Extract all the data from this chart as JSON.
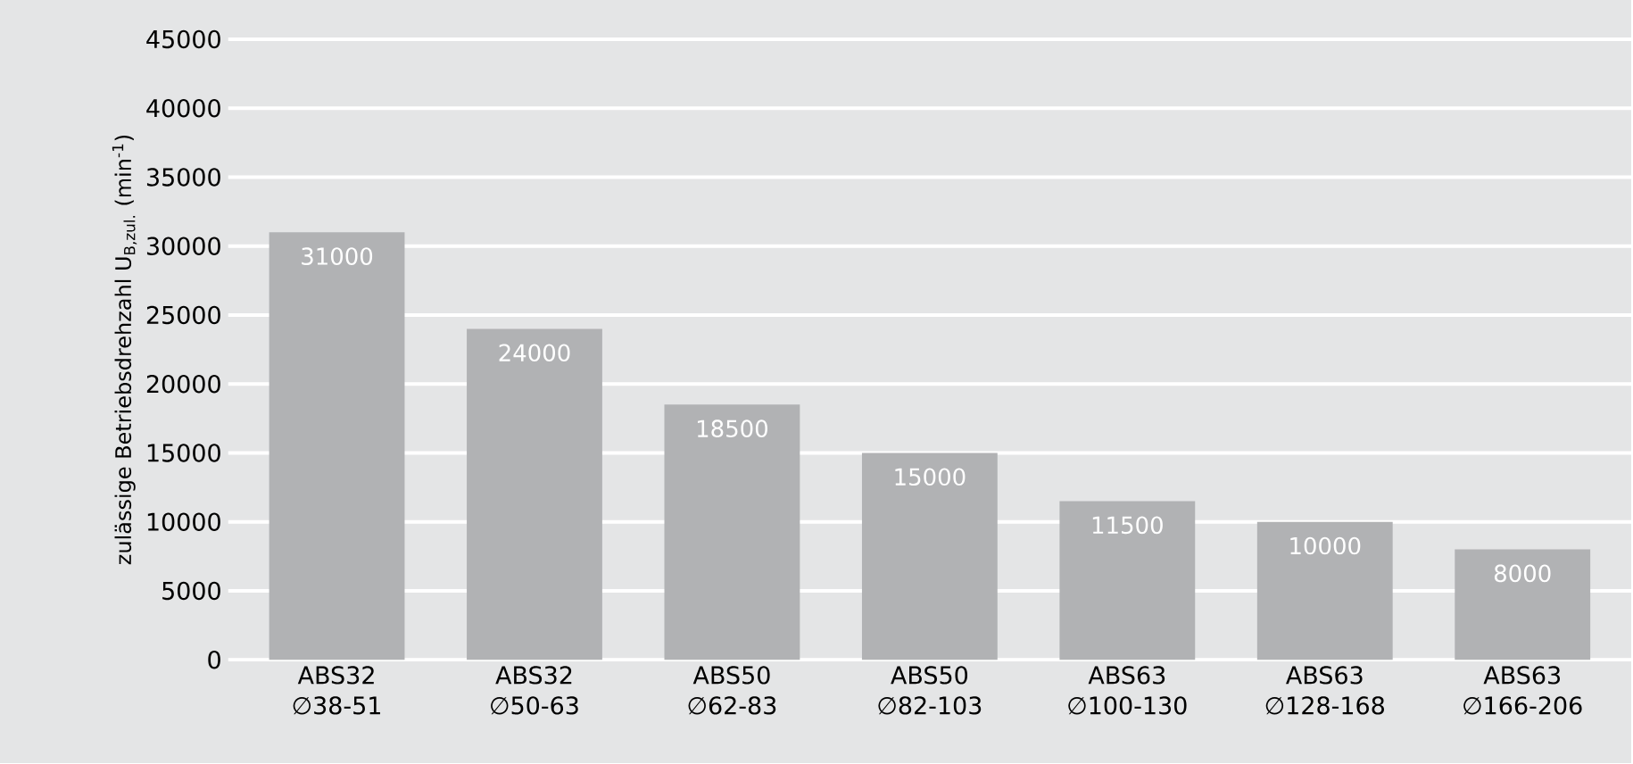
{
  "chart_data": {
    "type": "bar",
    "ylabel": "zulässige Betriebsdrehzahl U$_{B,zul.}$ (min$^{-1}$)",
    "categories": [
      "ABS32 ∅38-51",
      "ABS32 ∅50-63",
      "ABS50 ∅62-83",
      "ABS50 ∅82-103",
      "ABS63 ∅100-130",
      "ABS63 ∅128-168",
      "ABS63 ∅166-206"
    ],
    "values": [
      31000,
      24000,
      18500,
      15000,
      11500,
      10000,
      8000
    ],
    "color": "#b1b2b4",
    "ylim": [
      0,
      45000
    ],
    "yticks": [
      0,
      5000,
      10000,
      15000,
      20000,
      25000,
      30000,
      35000,
      40000,
      45000
    ],
    "grid": "y",
    "data_labels": true
  }
}
